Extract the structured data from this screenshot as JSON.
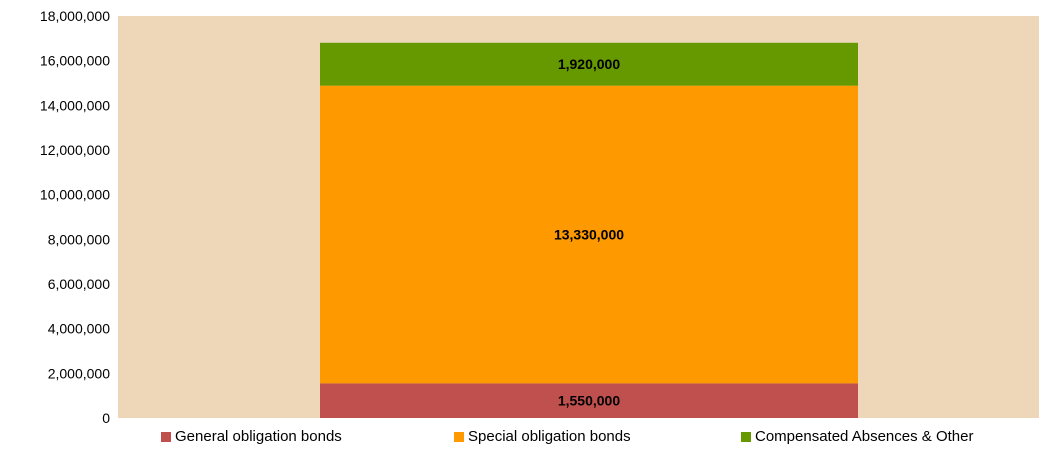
{
  "chart_data": {
    "type": "bar",
    "stacked": true,
    "categories": [
      ""
    ],
    "series": [
      {
        "name": "General obligation bonds",
        "values": [
          1550000
        ],
        "label": "1,550,000",
        "color": "#c0504d"
      },
      {
        "name": "Special obligation bonds",
        "values": [
          13330000
        ],
        "label": "13,330,000",
        "color": "#ff9900"
      },
      {
        "name": "Compensated Absences & Other",
        "values": [
          1920000
        ],
        "label": "1,920,000",
        "color": "#669900"
      }
    ],
    "ylim": [
      0,
      18000000
    ],
    "yticks": [
      0,
      2000000,
      4000000,
      6000000,
      8000000,
      10000000,
      12000000,
      14000000,
      16000000,
      18000000
    ],
    "ytick_labels": [
      "0",
      "2,000,000",
      "4,000,000",
      "6,000,000",
      "8,000,000",
      "10,000,000",
      "12,000,000",
      "14,000,000",
      "16,000,000",
      "18,000,000"
    ],
    "plot_background": "#eed6b8",
    "grid": false,
    "legend_position": "bottom",
    "title": "",
    "xlabel": "",
    "ylabel": ""
  }
}
